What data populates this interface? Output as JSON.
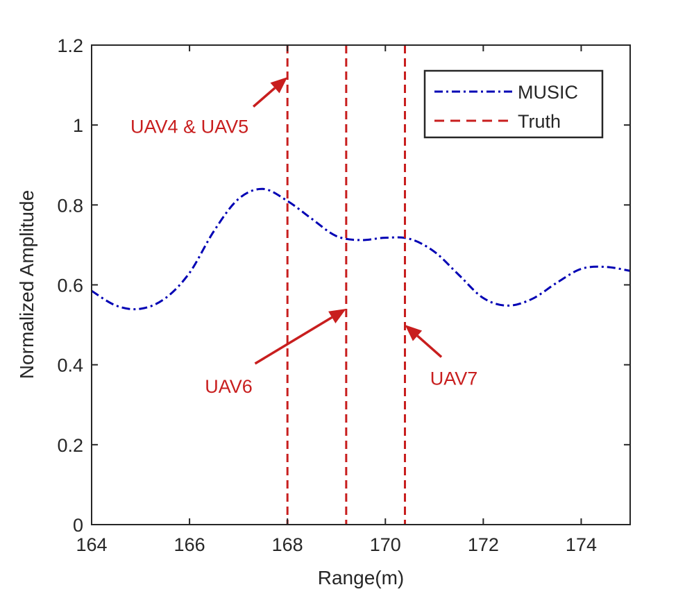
{
  "chart_data": {
    "type": "line",
    "title": "",
    "xlabel": "Range(m)",
    "ylabel": "Normalized Amplitude",
    "xlim": [
      164,
      175
    ],
    "ylim": [
      0,
      1.2
    ],
    "xticks": [
      164,
      166,
      168,
      170,
      172,
      174
    ],
    "yticks": [
      0,
      0.2,
      0.4,
      0.6,
      0.8,
      1,
      1.2
    ],
    "xtick_labels": [
      "164",
      "166",
      "168",
      "170",
      "172",
      "174"
    ],
    "ytick_labels": [
      "0",
      "0.2",
      "0.4",
      "0.6",
      "0.8",
      "1",
      "1.2"
    ],
    "grid": false,
    "legend_position": "top-right",
    "series": [
      {
        "name": "MUSIC",
        "style": "dash-dot",
        "color": "#0000b4",
        "x": [
          164,
          164.5,
          165,
          165.5,
          166,
          166.5,
          167,
          167.5,
          168,
          168.5,
          169,
          169.5,
          170,
          170.5,
          171,
          171.5,
          172,
          172.5,
          173,
          173.5,
          174,
          174.5,
          175
        ],
        "y": [
          0.585,
          0.548,
          0.54,
          0.566,
          0.63,
          0.735,
          0.815,
          0.84,
          0.81,
          0.765,
          0.722,
          0.712,
          0.718,
          0.715,
          0.683,
          0.625,
          0.567,
          0.548,
          0.565,
          0.605,
          0.64,
          0.645,
          0.635
        ]
      },
      {
        "name": "Truth",
        "style": "dashed",
        "color": "#c81e1e",
        "x_positions": [
          168.0,
          169.2,
          170.4
        ]
      }
    ],
    "annotations": [
      {
        "text": "UAV4 & UAV5",
        "x": 166.0,
        "y": 0.98,
        "arrow_to_x": 168.0,
        "arrow_to_y": 1.12
      },
      {
        "text": "UAV6",
        "x": 166.8,
        "y": 0.33,
        "arrow_to_x": 169.2,
        "arrow_to_y": 0.54
      },
      {
        "text": "UAV7",
        "x": 171.4,
        "y": 0.35,
        "arrow_to_x": 170.4,
        "arrow_to_y": 0.5
      }
    ],
    "annotation_color": "#c81e1e"
  }
}
